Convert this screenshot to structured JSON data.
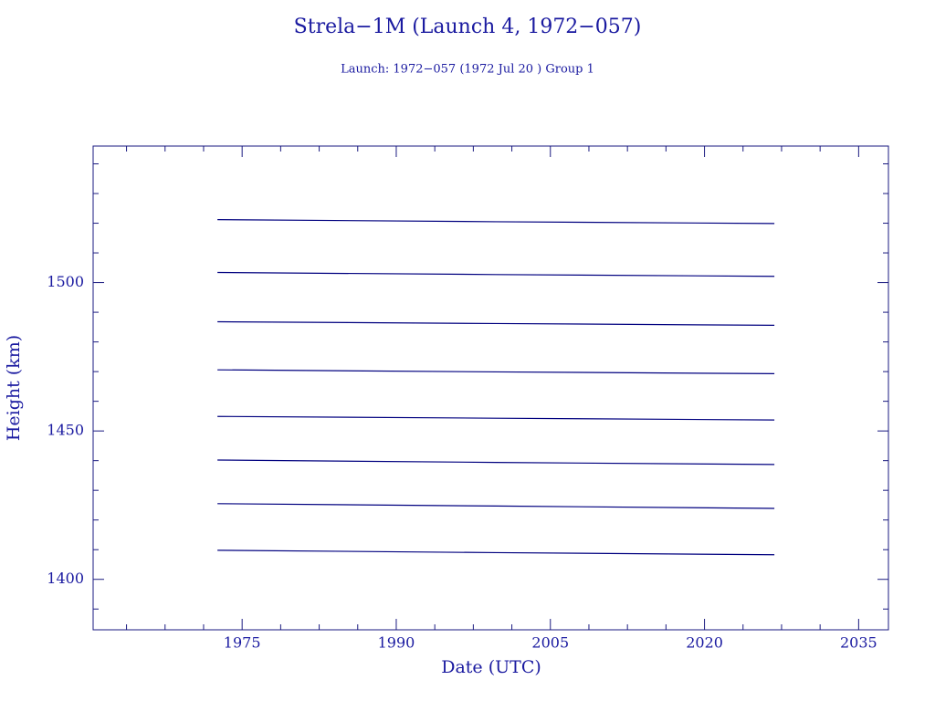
{
  "chart_data": {
    "type": "line",
    "title": "Strela−1M (Launch 4, 1972−057)",
    "subtitle": "Launch: 1972−057  (1972 Jul 20 )  Group 1",
    "x_label": "Date (UTC)",
    "y_label": "Height (km)",
    "xlim": [
      1960.5,
      2037.9
    ],
    "ylim": [
      1383,
      1546
    ],
    "xticks": [
      1975,
      1990,
      2005,
      2020,
      2035
    ],
    "yticks": [
      1400,
      1450,
      1500
    ],
    "xminorticks": [
      1963.75,
      1967.5,
      1971.25,
      1978.75,
      1982.5,
      1986.25,
      1993.75,
      1997.5,
      2001.25,
      2008.75,
      2012.5,
      2016.25,
      2023.75,
      2027.5,
      2031.25
    ],
    "yminorticks": [
      1390,
      1410,
      1420,
      1430,
      1440,
      1460,
      1470,
      1480,
      1490,
      1510,
      1520,
      1530,
      1540
    ],
    "x": [
      1972.6,
      1999.7,
      2026.8
    ],
    "series": [
      {
        "color": "#00007f",
        "values": [
          1521.2,
          1520.5,
          1519.9
        ]
      },
      {
        "color": "#00007f",
        "values": [
          1503.4,
          1502.7,
          1502.1
        ]
      },
      {
        "color": "#00007f",
        "values": [
          1486.8,
          1486.2,
          1485.6
        ]
      },
      {
        "color": "#00007f",
        "values": [
          1470.6,
          1469.9,
          1469.3
        ]
      },
      {
        "color": "#00007f",
        "values": [
          1454.9,
          1454.3,
          1453.7
        ]
      },
      {
        "color": "#00007f",
        "values": [
          1440.2,
          1439.4,
          1438.7
        ]
      },
      {
        "color": "#00007f",
        "values": [
          1425.5,
          1424.7,
          1423.9
        ]
      },
      {
        "color": "#00007f",
        "values": [
          1409.8,
          1409.0,
          1408.3
        ]
      }
    ]
  }
}
